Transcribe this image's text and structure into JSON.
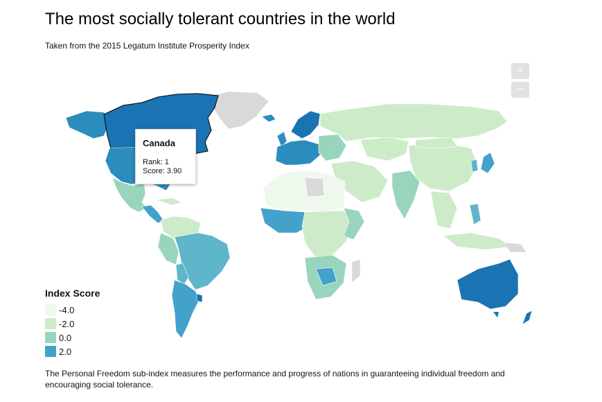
{
  "header": {
    "title": "The most socially tolerant countries in the world",
    "subtitle": "Taken from the 2015 Legatum Institute Prosperity Index"
  },
  "zoom": {
    "in_label": "+",
    "out_label": "−"
  },
  "tooltip": {
    "country": "Canada",
    "rank_text": "Rank: 1",
    "score_text": "Score: 3.90"
  },
  "legend": {
    "title": "Index Score",
    "items": [
      {
        "label": "-4.0",
        "color": "#eef8ec"
      },
      {
        "label": "-2.0",
        "color": "#cdebc9"
      },
      {
        "label": "0.0",
        "color": "#99d5bd"
      },
      {
        "label": "2.0",
        "color": "#43a2ca"
      }
    ]
  },
  "description": "The Personal Freedom sub-index measures the performance and progress of nations in guaranteeing individual freedom and encouraging social tolerance.",
  "colors": {
    "darkest": "#1a74b3",
    "dark": "#2b8cbe",
    "mid": "#5fb5c9",
    "teal": "#99d5bd",
    "light": "#cdebc9",
    "lightest": "#eef8ec",
    "nodata": "#d9d9d9"
  }
}
